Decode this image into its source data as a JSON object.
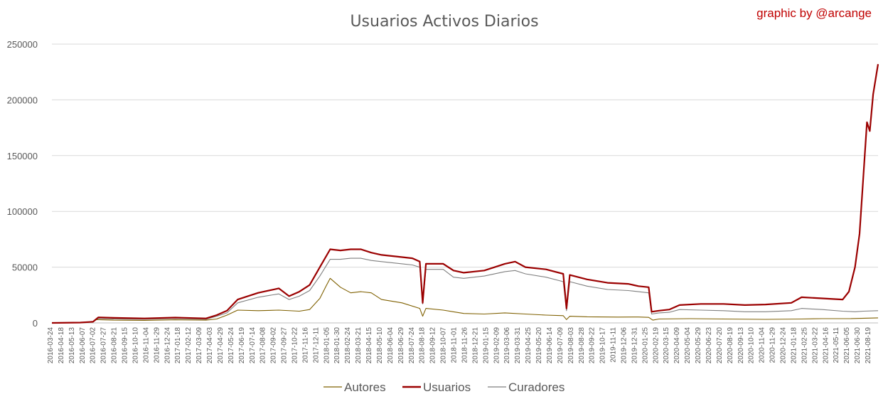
{
  "chart_data": {
    "type": "line",
    "title": "Usuarios Activos Diarios",
    "credit": "graphic by @arcange",
    "xlabel": "",
    "ylabel": "",
    "ylim": [
      0,
      250000
    ],
    "y_ticks": [
      "0",
      "50000",
      "100000",
      "150000",
      "200000",
      "250000"
    ],
    "y_tick_values": [
      0,
      50000,
      100000,
      150000,
      200000,
      250000
    ],
    "x_tick_labels": [
      "2016-03-24",
      "2016-04-18",
      "2016-05-13",
      "2016-06-07",
      "2016-07-02",
      "2016-07-27",
      "2016-08-21",
      "2016-09-15",
      "2016-10-10",
      "2016-11-04",
      "2016-11-29",
      "2016-12-24",
      "2017-01-18",
      "2017-02-12",
      "2017-03-09",
      "2017-04-03",
      "2017-04-29",
      "2017-05-24",
      "2017-06-19",
      "2017-07-14",
      "2017-08-08",
      "2017-09-02",
      "2017-09-27",
      "2017-10-22",
      "2017-11-16",
      "2017-12-11",
      "2018-01-05",
      "2018-01-30",
      "2018-02-24",
      "2018-03-21",
      "2018-04-15",
      "2018-05-10",
      "2018-06-04",
      "2018-06-29",
      "2018-07-24",
      "2018-08-18",
      "2018-09-12",
      "2018-10-07",
      "2018-11-01",
      "2018-11-26",
      "2018-12-21",
      "2019-01-15",
      "2019-02-09",
      "2019-03-06",
      "2019-03-31",
      "2019-04-25",
      "2019-05-20",
      "2019-06-14",
      "2019-07-09",
      "2019-08-03",
      "2019-08-28",
      "2019-09-22",
      "2019-10-17",
      "2019-11-11",
      "2019-12-06",
      "2019-12-31",
      "2020-01-25",
      "2020-02-19",
      "2020-03-15",
      "2020-04-09",
      "2020-05-04",
      "2020-05-29",
      "2020-06-23",
      "2020-07-20",
      "2020-08-19",
      "2020-09-13",
      "2020-10-10",
      "2020-11-04",
      "2020-11-29",
      "2020-12-24",
      "2021-01-18",
      "2021-02-25",
      "2021-03-22",
      "2021-04-16",
      "2021-05-11",
      "2021-06-05",
      "2021-06-30",
      "2021-08-19"
    ],
    "x_range": [
      "2016-03-24",
      "2021-09-24"
    ],
    "legend_position": "bottom",
    "grid": true,
    "series": [
      {
        "name": "Autores",
        "color": "#7f6000",
        "points": [
          [
            "2016-03-24",
            0
          ],
          [
            "2016-06-01",
            200
          ],
          [
            "2016-07-02",
            800
          ],
          [
            "2016-07-10",
            3000
          ],
          [
            "2016-08-21",
            2500
          ],
          [
            "2016-11-04",
            2300
          ],
          [
            "2017-01-18",
            2800
          ],
          [
            "2017-04-03",
            2500
          ],
          [
            "2017-04-29",
            3500
          ],
          [
            "2017-05-24",
            7000
          ],
          [
            "2017-06-19",
            11500
          ],
          [
            "2017-08-08",
            11000
          ],
          [
            "2017-09-27",
            11500
          ],
          [
            "2017-11-16",
            10500
          ],
          [
            "2017-12-11",
            12000
          ],
          [
            "2018-01-05",
            22000
          ],
          [
            "2018-01-20",
            33000
          ],
          [
            "2018-01-30",
            40000
          ],
          [
            "2018-02-24",
            32000
          ],
          [
            "2018-03-21",
            27000
          ],
          [
            "2018-04-15",
            28000
          ],
          [
            "2018-05-10",
            27000
          ],
          [
            "2018-06-04",
            21000
          ],
          [
            "2018-07-24",
            18000
          ],
          [
            "2018-09-05",
            13000
          ],
          [
            "2018-09-12",
            6000
          ],
          [
            "2018-09-20",
            13000
          ],
          [
            "2018-11-01",
            11500
          ],
          [
            "2018-12-21",
            8500
          ],
          [
            "2019-02-09",
            8000
          ],
          [
            "2019-03-31",
            9000
          ],
          [
            "2019-05-20",
            8000
          ],
          [
            "2019-07-09",
            7000
          ],
          [
            "2019-08-20",
            6500
          ],
          [
            "2019-08-28",
            3000
          ],
          [
            "2019-09-05",
            6000
          ],
          [
            "2019-10-17",
            5500
          ],
          [
            "2019-12-31",
            5200
          ],
          [
            "2020-02-19",
            5300
          ],
          [
            "2020-03-15",
            5000
          ],
          [
            "2020-03-25",
            2500
          ],
          [
            "2020-04-09",
            3500
          ],
          [
            "2020-06-23",
            3800
          ],
          [
            "2020-09-13",
            3500
          ],
          [
            "2020-12-24",
            3200
          ],
          [
            "2021-03-22",
            3500
          ],
          [
            "2021-05-11",
            3800
          ],
          [
            "2021-07-20",
            3900
          ],
          [
            "2021-09-24",
            4500
          ]
        ]
      },
      {
        "name": "Usuarios",
        "color": "#9b0000",
        "points": [
          [
            "2016-03-24",
            0
          ],
          [
            "2016-06-01",
            300
          ],
          [
            "2016-07-02",
            1000
          ],
          [
            "2016-07-15",
            5000
          ],
          [
            "2016-08-21",
            4500
          ],
          [
            "2016-11-04",
            4000
          ],
          [
            "2017-01-18",
            4800
          ],
          [
            "2017-04-03",
            4000
          ],
          [
            "2017-04-29",
            7000
          ],
          [
            "2017-05-24",
            11000
          ],
          [
            "2017-06-19",
            21000
          ],
          [
            "2017-08-08",
            27000
          ],
          [
            "2017-09-27",
            31000
          ],
          [
            "2017-10-22",
            24000
          ],
          [
            "2017-11-16",
            28000
          ],
          [
            "2017-12-11",
            34000
          ],
          [
            "2018-01-05",
            50000
          ],
          [
            "2018-01-30",
            66000
          ],
          [
            "2018-02-24",
            65000
          ],
          [
            "2018-03-21",
            66000
          ],
          [
            "2018-04-15",
            66000
          ],
          [
            "2018-05-10",
            63000
          ],
          [
            "2018-06-04",
            61000
          ],
          [
            "2018-07-24",
            59000
          ],
          [
            "2018-08-18",
            58000
          ],
          [
            "2018-09-05",
            55000
          ],
          [
            "2018-09-12",
            18000
          ],
          [
            "2018-09-20",
            53000
          ],
          [
            "2018-11-01",
            53000
          ],
          [
            "2018-11-26",
            47000
          ],
          [
            "2018-12-21",
            45000
          ],
          [
            "2019-02-09",
            47000
          ],
          [
            "2019-03-31",
            53000
          ],
          [
            "2019-04-25",
            55000
          ],
          [
            "2019-05-20",
            50000
          ],
          [
            "2019-07-09",
            48000
          ],
          [
            "2019-08-20",
            44000
          ],
          [
            "2019-08-28",
            13000
          ],
          [
            "2019-09-05",
            43000
          ],
          [
            "2019-10-17",
            39000
          ],
          [
            "2019-12-06",
            36000
          ],
          [
            "2020-01-25",
            35000
          ],
          [
            "2020-02-19",
            33000
          ],
          [
            "2020-03-15",
            32000
          ],
          [
            "2020-03-22",
            10000
          ],
          [
            "2020-04-09",
            11000
          ],
          [
            "2020-05-04",
            12000
          ],
          [
            "2020-05-29",
            16000
          ],
          [
            "2020-07-20",
            17000
          ],
          [
            "2020-09-13",
            17000
          ],
          [
            "2020-11-04",
            16000
          ],
          [
            "2020-12-24",
            16500
          ],
          [
            "2021-02-25",
            18000
          ],
          [
            "2021-03-22",
            23000
          ],
          [
            "2021-05-11",
            22000
          ],
          [
            "2021-06-30",
            21000
          ],
          [
            "2021-07-15",
            28000
          ],
          [
            "2021-07-30",
            50000
          ],
          [
            "2021-08-10",
            80000
          ],
          [
            "2021-08-19",
            130000
          ],
          [
            "2021-08-28",
            180000
          ],
          [
            "2021-09-04",
            172000
          ],
          [
            "2021-09-12",
            205000
          ],
          [
            "2021-09-24",
            232000
          ]
        ]
      },
      {
        "name": "Curadores",
        "color": "#7f7f7f",
        "points": [
          [
            "2016-03-24",
            0
          ],
          [
            "2016-06-01",
            200
          ],
          [
            "2016-07-02",
            800
          ],
          [
            "2016-07-15",
            4000
          ],
          [
            "2016-08-21",
            3500
          ],
          [
            "2016-11-04",
            3300
          ],
          [
            "2017-01-18",
            4000
          ],
          [
            "2017-04-03",
            3300
          ],
          [
            "2017-04-29",
            6000
          ],
          [
            "2017-05-24",
            9000
          ],
          [
            "2017-06-19",
            18000
          ],
          [
            "2017-08-08",
            23000
          ],
          [
            "2017-09-27",
            26000
          ],
          [
            "2017-10-22",
            21000
          ],
          [
            "2017-11-16",
            24000
          ],
          [
            "2017-12-11",
            29000
          ],
          [
            "2018-01-05",
            42000
          ],
          [
            "2018-01-30",
            57000
          ],
          [
            "2018-02-24",
            57000
          ],
          [
            "2018-03-21",
            58000
          ],
          [
            "2018-04-15",
            58000
          ],
          [
            "2018-05-10",
            56000
          ],
          [
            "2018-06-04",
            55000
          ],
          [
            "2018-07-24",
            53000
          ],
          [
            "2018-08-18",
            52000
          ],
          [
            "2018-09-05",
            50000
          ],
          [
            "2018-09-12",
            17000
          ],
          [
            "2018-09-20",
            48000
          ],
          [
            "2018-11-01",
            48000
          ],
          [
            "2018-11-26",
            41000
          ],
          [
            "2018-12-21",
            40000
          ],
          [
            "2019-02-09",
            42000
          ],
          [
            "2019-03-31",
            46000
          ],
          [
            "2019-04-25",
            47000
          ],
          [
            "2019-05-20",
            44000
          ],
          [
            "2019-07-09",
            41000
          ],
          [
            "2019-08-20",
            37000
          ],
          [
            "2019-08-28",
            11000
          ],
          [
            "2019-09-05",
            37000
          ],
          [
            "2019-10-17",
            33000
          ],
          [
            "2019-12-06",
            30000
          ],
          [
            "2020-01-25",
            29000
          ],
          [
            "2020-02-19",
            28000
          ],
          [
            "2020-03-15",
            27000
          ],
          [
            "2020-03-22",
            8000
          ],
          [
            "2020-04-09",
            9000
          ],
          [
            "2020-05-04",
            9500
          ],
          [
            "2020-05-29",
            12000
          ],
          [
            "2020-07-20",
            11500
          ],
          [
            "2020-09-13",
            11000
          ],
          [
            "2020-11-04",
            10000
          ],
          [
            "2020-12-24",
            10000
          ],
          [
            "2021-02-25",
            11000
          ],
          [
            "2021-03-22",
            13000
          ],
          [
            "2021-05-11",
            12000
          ],
          [
            "2021-06-30",
            10500
          ],
          [
            "2021-07-30",
            10000
          ],
          [
            "2021-08-19",
            10500
          ],
          [
            "2021-09-24",
            11000
          ]
        ]
      }
    ]
  }
}
